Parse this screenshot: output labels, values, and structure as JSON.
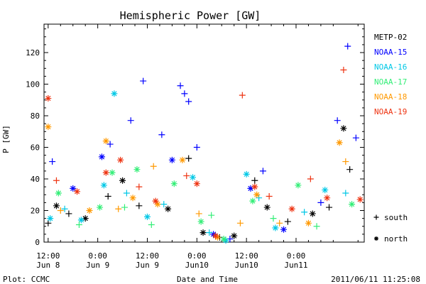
{
  "chart_data": {
    "type": "scatter",
    "title": "Hemispheric Power [GW]",
    "xlabel": "Date and Time",
    "ylabel": "P [GW]",
    "ylim": [
      0,
      138
    ],
    "xlim": [
      "2011-06-08 11:00",
      "2011-06-11 16:30"
    ],
    "yticks": [
      0,
      20,
      40,
      60,
      80,
      100,
      120
    ],
    "xticks": [
      {
        "t": "2011-06-08 12:00",
        "line1": "12:00",
        "line2": "Jun 8"
      },
      {
        "t": "2011-06-09 00:00",
        "line1": "0:00",
        "line2": "Jun 9"
      },
      {
        "t": "2011-06-09 12:00",
        "line1": "12:00",
        "line2": "Jun 9"
      },
      {
        "t": "2011-06-10 00:00",
        "line1": "0:00",
        "line2": "Jun10"
      },
      {
        "t": "2011-06-10 12:00",
        "line1": "12:00",
        "line2": "Jun10"
      },
      {
        "t": "2011-06-11 00:00",
        "line1": "0:00",
        "line2": "Jun11"
      }
    ],
    "legend_placement": "right",
    "marker_legend": [
      {
        "symbol": "+",
        "label": "south"
      },
      {
        "symbol": "*",
        "label": "north"
      }
    ],
    "footer_left": "Plot: CCMC",
    "footer_right": "2011/06/11 11:25:08",
    "series": [
      {
        "name": "METP-02",
        "color": "#000000",
        "points": [
          [
            "2011-06-08 12:00",
            12,
            "+"
          ],
          [
            "2011-06-08 14:00",
            23,
            "*"
          ],
          [
            "2011-06-08 17:00",
            18,
            "+"
          ],
          [
            "2011-06-08 21:00",
            15,
            "*"
          ],
          [
            "2011-06-09 02:30",
            29,
            "+"
          ],
          [
            "2011-06-09 06:00",
            39,
            "*"
          ],
          [
            "2011-06-09 10:00",
            23,
            "+"
          ],
          [
            "2011-06-09 17:00",
            21,
            "*"
          ],
          [
            "2011-06-09 22:00",
            53,
            "+"
          ],
          [
            "2011-06-10 01:30",
            6,
            "*"
          ],
          [
            "2011-06-10 05:30",
            3,
            "+"
          ],
          [
            "2011-06-10 09:00",
            4,
            "*"
          ],
          [
            "2011-06-10 14:00",
            39,
            "+"
          ],
          [
            "2011-06-10 17:00",
            22,
            "*"
          ],
          [
            "2011-06-10 22:00",
            13,
            "+"
          ],
          [
            "2011-06-11 04:00",
            18,
            "*"
          ],
          [
            "2011-06-11 08:00",
            22,
            "+"
          ],
          [
            "2011-06-11 11:30",
            72,
            "*"
          ],
          [
            "2011-06-11 13:00",
            46,
            "+"
          ]
        ]
      },
      {
        "name": "NOAA-15",
        "color": "#0000ff",
        "points": [
          [
            "2011-06-08 13:00",
            51,
            "+"
          ],
          [
            "2011-06-08 18:00",
            34,
            "*"
          ],
          [
            "2011-06-09 01:00",
            54,
            "*"
          ],
          [
            "2011-06-09 03:00",
            62,
            "+"
          ],
          [
            "2011-06-09 08:00",
            77,
            "+"
          ],
          [
            "2011-06-09 11:00",
            102,
            "+"
          ],
          [
            "2011-06-09 15:30",
            68,
            "+"
          ],
          [
            "2011-06-09 18:00",
            52,
            "*"
          ],
          [
            "2011-06-09 20:00",
            99,
            "+"
          ],
          [
            "2011-06-09 21:00",
            94,
            "+"
          ],
          [
            "2011-06-09 22:00",
            89,
            "+"
          ],
          [
            "2011-06-10 00:00",
            60,
            "+"
          ],
          [
            "2011-06-10 04:00",
            5,
            "*"
          ],
          [
            "2011-06-10 08:00",
            2,
            "+"
          ],
          [
            "2011-06-10 13:00",
            34,
            "*"
          ],
          [
            "2011-06-10 16:00",
            45,
            "+"
          ],
          [
            "2011-06-10 21:00",
            8,
            "*"
          ],
          [
            "2011-06-11 06:00",
            25,
            "+"
          ],
          [
            "2011-06-11 10:00",
            77,
            "+"
          ],
          [
            "2011-06-11 12:30",
            124,
            "+"
          ],
          [
            "2011-06-11 14:30",
            66,
            "+"
          ]
        ]
      },
      {
        "name": "NOAA-16",
        "color": "#00c8e6",
        "points": [
          [
            "2011-06-08 12:30",
            15,
            "*"
          ],
          [
            "2011-06-08 16:00",
            21,
            "+"
          ],
          [
            "2011-06-08 20:00",
            14,
            "*"
          ],
          [
            "2011-06-09 01:30",
            36,
            "*"
          ],
          [
            "2011-06-09 04:00",
            94,
            "*"
          ],
          [
            "2011-06-09 07:00",
            31,
            "+"
          ],
          [
            "2011-06-09 12:00",
            16,
            "*"
          ],
          [
            "2011-06-09 16:00",
            24,
            "+"
          ],
          [
            "2011-06-09 23:00",
            41,
            "*"
          ],
          [
            "2011-06-10 03:00",
            6,
            "+"
          ],
          [
            "2011-06-10 07:00",
            1,
            "*"
          ],
          [
            "2011-06-10 12:00",
            43,
            "*"
          ],
          [
            "2011-06-10 15:00",
            28,
            "+"
          ],
          [
            "2011-06-10 19:00",
            9,
            "*"
          ],
          [
            "2011-06-11 02:00",
            19,
            "+"
          ],
          [
            "2011-06-11 07:00",
            33,
            "*"
          ],
          [
            "2011-06-11 12:00",
            31,
            "+"
          ]
        ]
      },
      {
        "name": "NOAA-17",
        "color": "#33ee77",
        "points": [
          [
            "2011-06-08 14:30",
            31,
            "*"
          ],
          [
            "2011-06-08 19:30",
            11,
            "+"
          ],
          [
            "2011-06-09 00:30",
            22,
            "*"
          ],
          [
            "2011-06-09 03:30",
            44,
            "*"
          ],
          [
            "2011-06-09 06:30",
            22,
            "+"
          ],
          [
            "2011-06-09 09:30",
            46,
            "*"
          ],
          [
            "2011-06-09 13:00",
            11,
            "+"
          ],
          [
            "2011-06-09 18:30",
            37,
            "*"
          ],
          [
            "2011-06-10 01:00",
            13,
            "*"
          ],
          [
            "2011-06-10 03:30",
            17,
            "+"
          ],
          [
            "2011-06-10 06:30",
            2,
            "*"
          ],
          [
            "2011-06-10 13:30",
            26,
            "*"
          ],
          [
            "2011-06-10 18:30",
            15,
            "+"
          ],
          [
            "2011-06-11 00:30",
            36,
            "*"
          ],
          [
            "2011-06-11 05:00",
            10,
            "+"
          ],
          [
            "2011-06-11 13:30",
            24,
            "*"
          ]
        ]
      },
      {
        "name": "NOAA-18",
        "color": "#ff9900",
        "points": [
          [
            "2011-06-08 12:00",
            73,
            "*"
          ],
          [
            "2011-06-08 15:00",
            20,
            "+"
          ],
          [
            "2011-06-08 22:00",
            20,
            "*"
          ],
          [
            "2011-06-09 02:00",
            64,
            "*"
          ],
          [
            "2011-06-09 05:00",
            21,
            "+"
          ],
          [
            "2011-06-09 08:30",
            28,
            "*"
          ],
          [
            "2011-06-09 13:30",
            48,
            "+"
          ],
          [
            "2011-06-09 14:30",
            24,
            "*"
          ],
          [
            "2011-06-09 20:30",
            52,
            "*"
          ],
          [
            "2011-06-10 00:30",
            18,
            "+"
          ],
          [
            "2011-06-10 05:00",
            3,
            "*"
          ],
          [
            "2011-06-10 10:30",
            12,
            "+"
          ],
          [
            "2011-06-10 14:30",
            30,
            "*"
          ],
          [
            "2011-06-10 20:00",
            12,
            "+"
          ],
          [
            "2011-06-11 03:00",
            12,
            "*"
          ],
          [
            "2011-06-11 10:30",
            63,
            "*"
          ],
          [
            "2011-06-11 12:00",
            51,
            "+"
          ]
        ]
      },
      {
        "name": "NOAA-19",
        "color": "#ee3311",
        "points": [
          [
            "2011-06-08 12:00",
            91,
            "*"
          ],
          [
            "2011-06-08 14:00",
            39,
            "+"
          ],
          [
            "2011-06-08 19:00",
            32,
            "*"
          ],
          [
            "2011-06-09 02:00",
            44,
            "*"
          ],
          [
            "2011-06-09 05:30",
            52,
            "*"
          ],
          [
            "2011-06-09 10:00",
            35,
            "+"
          ],
          [
            "2011-06-09 14:00",
            26,
            "*"
          ],
          [
            "2011-06-09 21:30",
            42,
            "+"
          ],
          [
            "2011-06-10 00:00",
            37,
            "*"
          ],
          [
            "2011-06-10 04:30",
            4,
            "*"
          ],
          [
            "2011-06-10 11:00",
            93,
            "+"
          ],
          [
            "2011-06-10 14:00",
            35,
            "*"
          ],
          [
            "2011-06-10 17:30",
            29,
            "+"
          ],
          [
            "2011-06-10 23:00",
            21,
            "*"
          ],
          [
            "2011-06-11 03:30",
            40,
            "+"
          ],
          [
            "2011-06-11 07:30",
            28,
            "*"
          ],
          [
            "2011-06-11 11:30",
            109,
            "+"
          ],
          [
            "2011-06-11 15:30",
            27,
            "*"
          ]
        ]
      }
    ]
  }
}
